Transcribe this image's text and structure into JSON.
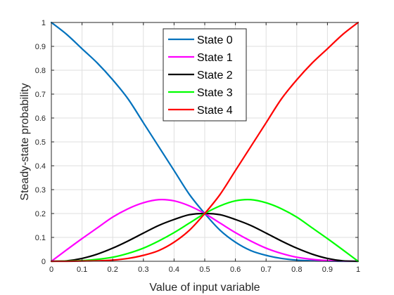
{
  "chart_data": {
    "type": "line",
    "title": "",
    "xlabel": "Value of input variable",
    "ylabel": "Steady-state probability",
    "xlim": [
      0,
      1
    ],
    "ylim": [
      0,
      1
    ],
    "grid": true,
    "legend_position": "top-center",
    "x_ticks": [
      "0",
      "0.1",
      "0.2",
      "0.3",
      "0.4",
      "0.5",
      "0.6",
      "0.7",
      "0.8",
      "0.9",
      "1"
    ],
    "y_ticks": [
      "0",
      "0.1",
      "0.2",
      "0.3",
      "0.4",
      "0.5",
      "0.6",
      "0.7",
      "0.8",
      "0.9",
      "1"
    ],
    "x": [
      0,
      0.05,
      0.1,
      0.15,
      0.2,
      0.25,
      0.3,
      0.35,
      0.4,
      0.45,
      0.5,
      0.55,
      0.6,
      0.65,
      0.7,
      0.75,
      0.8,
      0.85,
      0.9,
      0.95,
      1
    ],
    "series": [
      {
        "name": "State 0",
        "color": "#0072BD",
        "values": [
          1,
          0.95,
          0.89,
          0.83,
          0.76,
          0.68,
          0.58,
          0.48,
          0.38,
          0.28,
          0.2,
          0.13,
          0.08,
          0.045,
          0.025,
          0.012,
          0.005,
          0.002,
          0.001,
          0,
          0
        ]
      },
      {
        "name": "State 1",
        "color": "#FF00FF",
        "values": [
          0,
          0.048,
          0.095,
          0.14,
          0.185,
          0.22,
          0.245,
          0.258,
          0.253,
          0.232,
          0.2,
          0.16,
          0.12,
          0.085,
          0.055,
          0.033,
          0.017,
          0.008,
          0.003,
          0.001,
          0
        ]
      },
      {
        "name": "State 2",
        "color": "#000000",
        "values": [
          0,
          0.002,
          0.012,
          0.03,
          0.055,
          0.085,
          0.118,
          0.15,
          0.175,
          0.195,
          0.2,
          0.195,
          0.175,
          0.15,
          0.118,
          0.085,
          0.055,
          0.03,
          0.012,
          0.002,
          0
        ]
      },
      {
        "name": "State 3",
        "color": "#00FF00",
        "values": [
          0,
          0.001,
          0.003,
          0.008,
          0.017,
          0.033,
          0.055,
          0.085,
          0.12,
          0.16,
          0.2,
          0.232,
          0.253,
          0.258,
          0.245,
          0.22,
          0.185,
          0.14,
          0.095,
          0.048,
          0
        ]
      },
      {
        "name": "State 4",
        "color": "#FF0000",
        "values": [
          0,
          0,
          0.001,
          0.002,
          0.005,
          0.012,
          0.025,
          0.045,
          0.08,
          0.13,
          0.2,
          0.28,
          0.38,
          0.48,
          0.58,
          0.68,
          0.76,
          0.83,
          0.89,
          0.95,
          1
        ]
      }
    ]
  }
}
